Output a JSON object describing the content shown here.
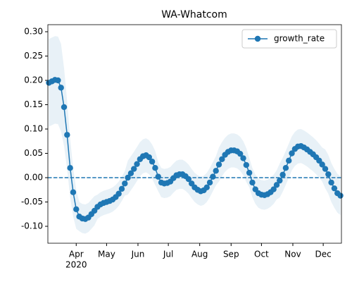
{
  "chart_data": {
    "type": "line",
    "title": "WA-Whatcom",
    "x": [
      65,
      68,
      71,
      74,
      77,
      80,
      83,
      86,
      89,
      92,
      95,
      98,
      101,
      104,
      107,
      110,
      113,
      116,
      119,
      122,
      125,
      128,
      131,
      134,
      137,
      140,
      143,
      146,
      149,
      152,
      155,
      158,
      161,
      164,
      167,
      170,
      173,
      176,
      179,
      182,
      185,
      188,
      191,
      194,
      197,
      200,
      203,
      206,
      209,
      212,
      215,
      218,
      221,
      224,
      227,
      230,
      233,
      236,
      239,
      242,
      245,
      248,
      251,
      254,
      257,
      260,
      263,
      266,
      269,
      272,
      275,
      278,
      281,
      284,
      287,
      290,
      293,
      296,
      299,
      302,
      305,
      308,
      311,
      314,
      317,
      320,
      323,
      326,
      329,
      332,
      335,
      338,
      341,
      344,
      347,
      350,
      353
    ],
    "series": [
      {
        "name": "growth_rate",
        "color": "#1f77b4",
        "values": [
          0.195,
          0.198,
          0.201,
          0.2,
          0.185,
          0.145,
          0.088,
          0.02,
          -0.03,
          -0.065,
          -0.08,
          -0.084,
          -0.085,
          -0.082,
          -0.075,
          -0.068,
          -0.06,
          -0.055,
          -0.052,
          -0.05,
          -0.048,
          -0.045,
          -0.04,
          -0.033,
          -0.023,
          -0.012,
          0.0,
          0.009,
          0.018,
          0.028,
          0.038,
          0.044,
          0.046,
          0.042,
          0.033,
          0.02,
          0.002,
          -0.01,
          -0.012,
          -0.011,
          -0.008,
          -0.001,
          0.005,
          0.007,
          0.007,
          0.003,
          -0.003,
          -0.012,
          -0.02,
          -0.025,
          -0.028,
          -0.026,
          -0.02,
          -0.01,
          0.002,
          0.014,
          0.027,
          0.038,
          0.047,
          0.053,
          0.056,
          0.056,
          0.054,
          0.049,
          0.04,
          0.026,
          0.01,
          -0.01,
          -0.024,
          -0.032,
          -0.035,
          -0.036,
          -0.034,
          -0.03,
          -0.024,
          -0.015,
          -0.006,
          0.006,
          0.02,
          0.035,
          0.05,
          0.059,
          0.064,
          0.065,
          0.062,
          0.058,
          0.053,
          0.048,
          0.042,
          0.035,
          0.027,
          0.018,
          0.007,
          -0.01,
          -0.022,
          -0.032,
          -0.037
        ],
        "error": [
          0.09,
          0.09,
          0.09,
          0.09,
          0.09,
          0.08,
          0.07,
          0.06,
          0.05,
          0.04,
          0.03,
          0.03,
          0.03,
          0.03,
          0.03,
          0.03,
          0.025,
          0.025,
          0.025,
          0.025,
          0.025,
          0.025,
          0.025,
          0.025,
          0.025,
          0.025,
          0.035,
          0.035,
          0.035,
          0.035,
          0.035,
          0.035,
          0.035,
          0.035,
          0.035,
          0.035,
          0.03,
          0.03,
          0.03,
          0.03,
          0.03,
          0.03,
          0.03,
          0.03,
          0.03,
          0.03,
          0.03,
          0.03,
          0.03,
          0.03,
          0.03,
          0.03,
          0.03,
          0.03,
          0.03,
          0.03,
          0.035,
          0.035,
          0.035,
          0.035,
          0.035,
          0.035,
          0.035,
          0.035,
          0.035,
          0.035,
          0.03,
          0.03,
          0.03,
          0.03,
          0.03,
          0.03,
          0.03,
          0.03,
          0.03,
          0.03,
          0.035,
          0.035,
          0.035,
          0.035,
          0.035,
          0.035,
          0.035,
          0.035,
          0.035,
          0.035,
          0.035,
          0.035,
          0.035,
          0.035,
          0.035,
          0.04,
          0.04,
          0.04,
          0.04,
          0.04,
          0.04
        ]
      }
    ],
    "hline": 0,
    "xlim": [
      64,
      354
    ],
    "xticks": [
      {
        "value": 92,
        "label": "Apr"
      },
      {
        "value": 122,
        "label": "May"
      },
      {
        "value": 153,
        "label": "Jun"
      },
      {
        "value": 183,
        "label": "Jul"
      },
      {
        "value": 214,
        "label": "Aug"
      },
      {
        "value": 245,
        "label": "Sep"
      },
      {
        "value": 275,
        "label": "Oct"
      },
      {
        "value": 306,
        "label": "Nov"
      },
      {
        "value": 336,
        "label": "Dec"
      }
    ],
    "x_year_label": "2020",
    "ylim": [
      -0.1348,
      0.3145
    ],
    "yticks": [
      {
        "value": -0.1,
        "label": "-0.10"
      },
      -0.05,
      {
        "value": 0,
        "label": "0.00"
      },
      0.05,
      {
        "value": 0.1,
        "label": "0.10"
      },
      0.15,
      {
        "value": 0.2,
        "label": "0.20"
      },
      0.25,
      {
        "value": 0.3,
        "label": "0.30"
      }
    ],
    "legend": "upper right"
  }
}
